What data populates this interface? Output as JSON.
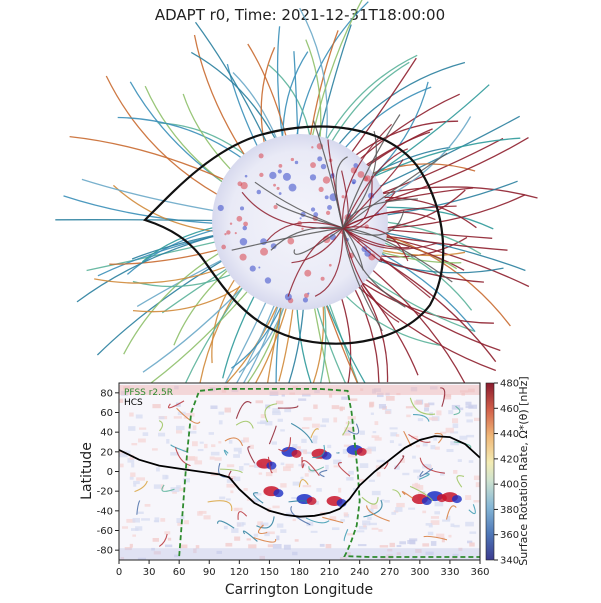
{
  "chart_data": {
    "type": "heatmap",
    "title": "ADAPT r0, Time: 2021-12-31T18:00:00",
    "xlabel": "Carrington Longitude",
    "ylabel": "Latitude",
    "xlim": [
      0,
      360
    ],
    "ylim": [
      -90,
      90
    ],
    "xticks": [
      0,
      30,
      60,
      90,
      120,
      150,
      180,
      210,
      240,
      270,
      300,
      330,
      360
    ],
    "yticks": [
      -80,
      -60,
      -40,
      -20,
      0,
      20,
      40,
      60,
      80
    ],
    "colorbar": {
      "label": "Surface Rotation Rate, Ω*(θ) [nHz]",
      "range": [
        340,
        480
      ],
      "ticks": [
        340,
        360,
        380,
        400,
        420,
        440,
        460,
        480
      ]
    },
    "legend": [
      {
        "label": "PFSS r2.5R",
        "color": "#2e8b2e",
        "style": "dashed"
      },
      {
        "label": "HCS",
        "color": "#000000",
        "style": "solid"
      }
    ],
    "legend_position": "top-left",
    "hcs_line": {
      "lon": [
        0,
        20,
        40,
        60,
        80,
        100,
        110,
        120,
        135,
        150,
        165,
        180,
        195,
        210,
        220,
        230,
        240,
        255,
        270,
        285,
        300,
        315,
        330,
        345,
        360
      ],
      "lat": [
        22,
        12,
        6,
        3,
        0,
        -3,
        -6,
        -18,
        -32,
        -40,
        -44,
        -46,
        -45,
        -42,
        -38,
        -28,
        -14,
        0,
        12,
        24,
        32,
        36,
        35,
        28,
        14
      ]
    },
    "pfss_boundary": {
      "lon": [
        60,
        62,
        65,
        68,
        72,
        80,
        100,
        150,
        200,
        228,
        232,
        235,
        238,
        240,
        237,
        232,
        228,
        225,
        250,
        300,
        360
      ],
      "lat": [
        -86,
        -60,
        -20,
        20,
        60,
        82,
        84,
        84,
        84,
        82,
        60,
        30,
        0,
        -30,
        -55,
        -70,
        -80,
        -86,
        -87,
        -87,
        -87
      ]
    },
    "active_regions": [
      {
        "lon": 145,
        "lat": 8,
        "sign": "+"
      },
      {
        "lon": 152,
        "lat": -20,
        "sign": "+"
      },
      {
        "lon": 185,
        "lat": -28,
        "sign": "-"
      },
      {
        "lon": 200,
        "lat": 18,
        "sign": "+"
      },
      {
        "lon": 215,
        "lat": -30,
        "sign": "+"
      },
      {
        "lon": 235,
        "lat": 22,
        "sign": "-"
      },
      {
        "lon": 300,
        "lat": -28,
        "sign": "+"
      },
      {
        "lon": 315,
        "lat": -25,
        "sign": "-"
      },
      {
        "lon": 170,
        "lat": 20,
        "sign": "-"
      },
      {
        "lon": 330,
        "lat": -26,
        "sign": "+"
      }
    ]
  }
}
